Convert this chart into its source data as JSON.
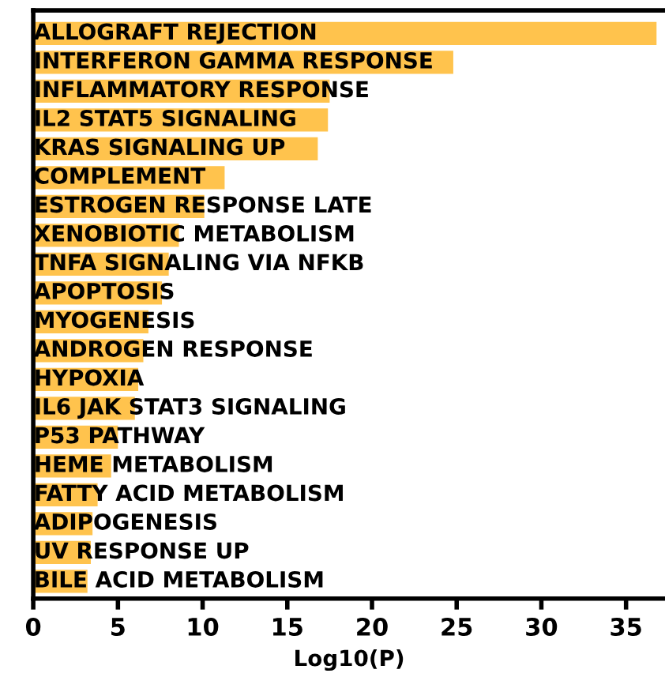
{
  "chart_data": {
    "type": "bar",
    "orientation": "horizontal",
    "xlabel": "Log10(P)",
    "categories": [
      "ALLOGRAFT REJECTION",
      "INTERFERON GAMMA RESPONSE",
      "INFLAMMATORY RESPONSE",
      "IL2 STAT5 SIGNALING",
      "KRAS SIGNALING UP",
      "COMPLEMENT",
      "ESTROGEN RESPONSE LATE",
      "XENOBIOTIC METABOLISM",
      "TNFA SIGNALING VIA NFKB",
      "APOPTOSIS",
      "MYOGENESIS",
      "ANDROGEN RESPONSE",
      "HYPOXIA",
      "IL6 JAK STAT3 SIGNALING",
      "P53 PATHWAY",
      "HEME METABOLISM",
      "FATTY ACID METABOLISM",
      "ADIPOGENESIS",
      "UV RESPONSE UP",
      "BILE ACID METABOLISM"
    ],
    "values": [
      36.8,
      24.8,
      17.5,
      17.4,
      16.8,
      11.3,
      10.1,
      8.6,
      8.0,
      7.6,
      6.8,
      6.5,
      6.2,
      6.0,
      5.0,
      4.6,
      3.8,
      3.5,
      3.4,
      3.2
    ],
    "color": "#ffc34d",
    "xlim": [
      0,
      37.3
    ],
    "xticks": [
      0,
      5,
      10,
      15,
      20,
      25,
      30,
      35
    ],
    "grid": false,
    "legend": false
  }
}
